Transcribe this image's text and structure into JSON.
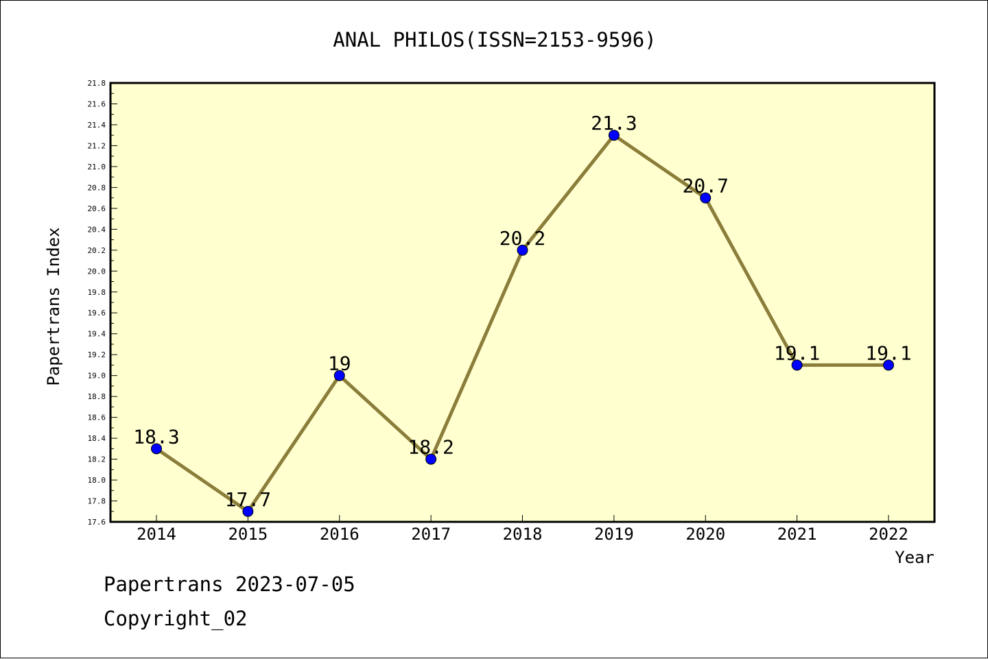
{
  "chart_data": {
    "type": "line",
    "title": "ANAL PHILOS(ISSN=2153-9596)",
    "xlabel": "Year",
    "ylabel": "Papertrans Index",
    "categories": [
      "2014",
      "2015",
      "2016",
      "2017",
      "2018",
      "2019",
      "2020",
      "2021",
      "2022"
    ],
    "values": [
      18.3,
      17.7,
      19,
      18.2,
      20.2,
      21.3,
      20.7,
      19.1,
      19.1
    ],
    "data_labels": [
      "18.3",
      "17.7",
      "19",
      "18.2",
      "20.2",
      "21.3",
      "20.7",
      "19.1",
      "19.1"
    ],
    "ylim": [
      17.6,
      21.8
    ],
    "yticks": [
      "17.6",
      "17.8",
      "18.0",
      "18.2",
      "18.4",
      "18.6",
      "18.8",
      "19.0",
      "19.2",
      "19.4",
      "19.6",
      "19.8",
      "20.0",
      "20.2",
      "20.4",
      "20.6",
      "20.8",
      "21.0",
      "21.2",
      "21.4",
      "21.6",
      "21.8"
    ],
    "grid": false,
    "legend": "none",
    "colors": {
      "plot_background": "#ffffd0",
      "line": "#8b7d3a",
      "marker": "#0000ff"
    }
  },
  "footer": {
    "source_line": "Papertrans 2023-07-05",
    "copyright": "Copyright_02"
  }
}
